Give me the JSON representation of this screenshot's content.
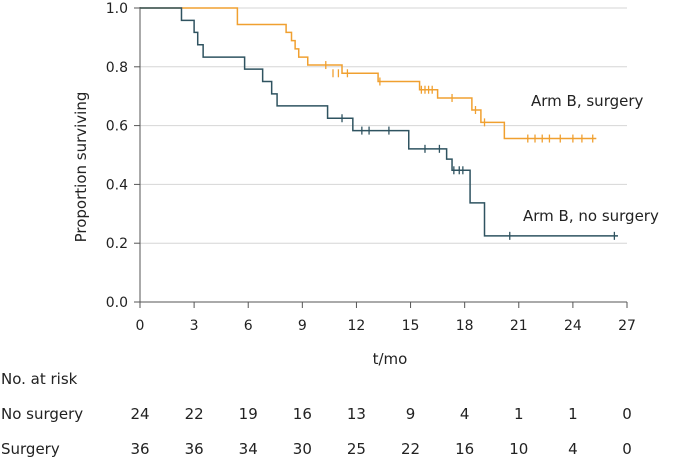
{
  "chart_data": {
    "type": "line",
    "subtype": "kaplan-meier step",
    "xlabel": "t/mo",
    "ylabel": "Proportion surviving",
    "xlim": [
      0,
      27
    ],
    "ylim": [
      0,
      1
    ],
    "xticks": [
      0,
      3,
      6,
      9,
      12,
      15,
      18,
      21,
      24,
      27
    ],
    "yticks": [
      0.0,
      0.2,
      0.4,
      0.6,
      0.8,
      1.0
    ],
    "ytick_labels": [
      "0.0",
      "0.2",
      "0.4",
      "0.6",
      "0.8",
      "1.0"
    ],
    "grid": "horizontal",
    "series": [
      {
        "name": "Arm B, surgery",
        "color": "#f0a030",
        "steps": [
          [
            0,
            1.0
          ],
          [
            5.4,
            0.944
          ],
          [
            8.1,
            0.917
          ],
          [
            8.4,
            0.889
          ],
          [
            8.6,
            0.861
          ],
          [
            8.8,
            0.833
          ],
          [
            9.3,
            0.806
          ],
          [
            11.2,
            0.778
          ],
          [
            13.2,
            0.75
          ],
          [
            15.5,
            0.722
          ],
          [
            16.5,
            0.694
          ],
          [
            18.4,
            0.653
          ],
          [
            18.9,
            0.611
          ],
          [
            20.2,
            0.556
          ]
        ],
        "end_x": 25.3,
        "censored": [
          [
            10.3,
            0.806
          ],
          [
            10.7,
            0.778
          ],
          [
            11.0,
            0.778
          ],
          [
            11.5,
            0.778
          ],
          [
            13.3,
            0.75
          ],
          [
            15.6,
            0.722
          ],
          [
            15.8,
            0.722
          ],
          [
            16.0,
            0.722
          ],
          [
            16.2,
            0.722
          ],
          [
            17.3,
            0.694
          ],
          [
            18.6,
            0.653
          ],
          [
            19.1,
            0.611
          ],
          [
            21.5,
            0.556
          ],
          [
            21.9,
            0.556
          ],
          [
            22.3,
            0.556
          ],
          [
            22.7,
            0.556
          ],
          [
            23.3,
            0.556
          ],
          [
            24.0,
            0.556
          ],
          [
            24.5,
            0.556
          ],
          [
            25.1,
            0.556
          ]
        ]
      },
      {
        "name": "Arm B, no surgery",
        "color": "#2f5360",
        "steps": [
          [
            0,
            1.0
          ],
          [
            2.3,
            0.958
          ],
          [
            3.0,
            0.917
          ],
          [
            3.2,
            0.875
          ],
          [
            3.5,
            0.833
          ],
          [
            5.8,
            0.792
          ],
          [
            6.8,
            0.75
          ],
          [
            7.3,
            0.708
          ],
          [
            7.6,
            0.667
          ],
          [
            10.4,
            0.625
          ],
          [
            11.8,
            0.583
          ],
          [
            14.9,
            0.521
          ],
          [
            17.0,
            0.486
          ],
          [
            17.3,
            0.448
          ],
          [
            18.3,
            0.337
          ],
          [
            19.1,
            0.225
          ]
        ],
        "end_x": 26.5,
        "censored": [
          [
            11.2,
            0.625
          ],
          [
            12.3,
            0.583
          ],
          [
            12.7,
            0.583
          ],
          [
            13.8,
            0.583
          ],
          [
            15.8,
            0.521
          ],
          [
            16.6,
            0.521
          ],
          [
            17.4,
            0.448
          ],
          [
            17.7,
            0.448
          ],
          [
            17.9,
            0.448
          ],
          [
            20.5,
            0.225
          ],
          [
            26.3,
            0.225
          ]
        ]
      }
    ],
    "series_labels": [
      "Arm B, surgery",
      "Arm B, no surgery"
    ],
    "risk_table": {
      "title": "No. at risk",
      "rows": [
        {
          "label": "No surgery",
          "values": [
            "24",
            "22",
            "19",
            "16",
            "13",
            "9",
            "4",
            "1",
            "1",
            "0"
          ]
        },
        {
          "label": "Surgery",
          "values": [
            "36",
            "36",
            "34",
            "30",
            "25",
            "22",
            "16",
            "10",
            "4",
            "0"
          ]
        }
      ]
    }
  }
}
